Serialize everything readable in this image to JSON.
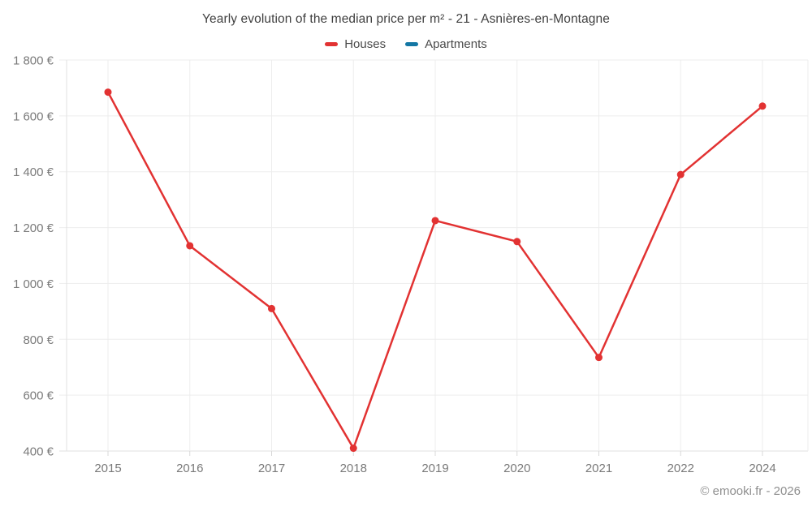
{
  "header": {
    "title": "Yearly evolution of the median price per m² - 21 - Asnières-en-Montagne"
  },
  "legend": {
    "items": [
      {
        "label": "Houses",
        "color": "#e23232"
      },
      {
        "label": "Apartments",
        "color": "#1377a4"
      }
    ]
  },
  "footer": {
    "credit": "© emooki.fr - 2026"
  },
  "colors": {
    "houses_series": "#e23232",
    "apartments_series": "#1377a4",
    "gridline": "#ededed",
    "axis_line": "#e2e2e2",
    "tick_mark": "#d8d8d8",
    "tick_text": "#7a7a7a"
  },
  "chart_data": {
    "type": "line",
    "title": "Yearly evolution of the median price per m² - 21 - Asnières-en-Montagne",
    "categories": [
      "2015",
      "2016",
      "2017",
      "2018",
      "2019",
      "2020",
      "2021",
      "2022",
      "2024"
    ],
    "series": [
      {
        "name": "Houses",
        "color": "#e23232",
        "values": [
          1685,
          1135,
          910,
          410,
          1225,
          1150,
          735,
          1390,
          1635
        ]
      },
      {
        "name": "Apartments",
        "color": "#1377a4",
        "values": []
      }
    ],
    "xlabel": "",
    "ylabel": "",
    "ylim": [
      400,
      1800
    ],
    "ytick_step": 200,
    "ytick_labels": [
      "400 €",
      "600 €",
      "800 €",
      "1 000 €",
      "1 200 €",
      "1 400 €",
      "1 600 €",
      "1 800 €"
    ],
    "grid": true,
    "legend_position": "top",
    "marker": "circle"
  }
}
